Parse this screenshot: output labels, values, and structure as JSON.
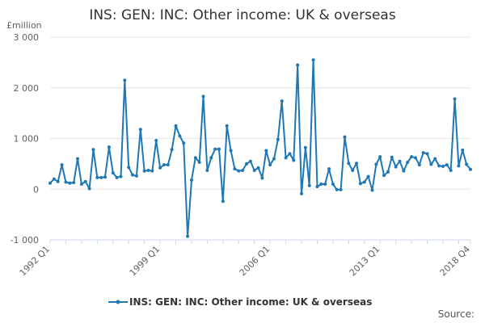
{
  "chart_data": {
    "type": "line",
    "title": "INS: GEN: INC: Other income: UK & overseas",
    "ylabel": "£million",
    "ylim": [
      -1000,
      3000
    ],
    "yticks": [
      -1000,
      0,
      1000,
      2000,
      3000
    ],
    "ytick_labels": [
      "-1 000",
      "0",
      "1 000",
      "2 000",
      "3 000"
    ],
    "xtick_labels": [
      "1992 Q1",
      "1999 Q1",
      "2006 Q1",
      "2013 Q1",
      "2018 Q4"
    ],
    "xtick_indices": [
      0,
      28,
      56,
      84,
      107
    ],
    "grid": "horizontal",
    "legend_position": "bottom",
    "source_label": "Source:",
    "color": "#1f78b4",
    "series": [
      {
        "name": "INS: GEN: INC: Other income: UK & overseas",
        "x_start": "1992 Q1",
        "x_end": "2018 Q4",
        "frequency": "quarterly",
        "values": [
          120,
          200,
          150,
          480,
          140,
          120,
          130,
          600,
          100,
          150,
          10,
          780,
          230,
          230,
          240,
          830,
          320,
          230,
          250,
          2150,
          430,
          280,
          260,
          1180,
          360,
          370,
          360,
          960,
          420,
          480,
          480,
          780,
          1250,
          1050,
          910,
          -930,
          180,
          620,
          530,
          1830,
          370,
          620,
          790,
          790,
          -240,
          1250,
          760,
          400,
          360,
          370,
          500,
          550,
          370,
          420,
          220,
          760,
          480,
          600,
          980,
          1740,
          620,
          700,
          570,
          2450,
          -90,
          820,
          70,
          2550,
          50,
          100,
          100,
          400,
          100,
          -10,
          -10,
          1030,
          510,
          370,
          510,
          110,
          140,
          250,
          -20,
          490,
          640,
          270,
          340,
          630,
          440,
          550,
          360,
          530,
          640,
          620,
          480,
          720,
          700,
          490,
          600,
          460,
          450,
          480,
          370,
          1780,
          460,
          770,
          490,
          390
        ]
      }
    ]
  }
}
